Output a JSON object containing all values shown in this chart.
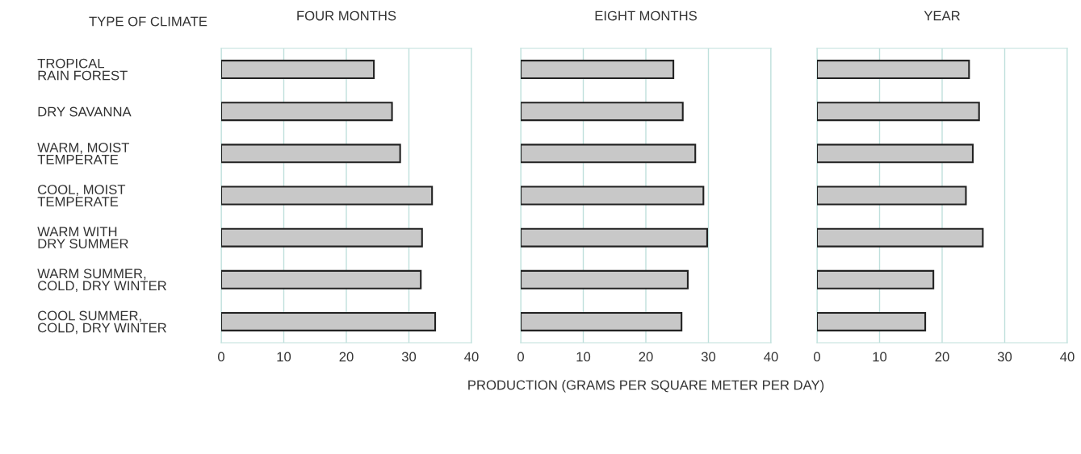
{
  "chart_data": [
    {
      "type": "bar",
      "orientation": "horizontal",
      "title": "FOUR MONTHS",
      "ylabel": "TYPE OF CLIMATE",
      "categories": [
        "TROPICAL\nRAIN FOREST",
        "DRY SAVANNA",
        "WARM, MOIST\nTEMPERATE",
        "COOL, MOIST\nTEMPERATE",
        "WARM WITH\nDRY SUMMER",
        "WARM SUMMER,\nCOLD, DRY WINTER",
        "COOL SUMMER,\nCOLD, DRY WINTER"
      ],
      "values": [
        24.4,
        27.3,
        28.6,
        33.7,
        32.1,
        31.9,
        34.2
      ],
      "color": "#c8c8c8",
      "xlim": [
        0,
        40
      ],
      "xticks": [
        0,
        10,
        20,
        30,
        40
      ],
      "grid": "x"
    },
    {
      "type": "bar",
      "orientation": "horizontal",
      "title": "EIGHT MONTHS",
      "xlabel": "PRODUCTION (GRAMS PER SQUARE METER PER DAY)",
      "values": [
        24.4,
        25.9,
        27.9,
        29.2,
        29.8,
        26.7,
        25.7
      ],
      "color": "#c8c8c8",
      "xlim": [
        0,
        40
      ],
      "xticks": [
        0,
        10,
        20,
        30,
        40
      ],
      "grid": "x",
      "tick_labels": "x"
    },
    {
      "type": "bar",
      "orientation": "horizontal",
      "title": "YEAR",
      "values": [
        24.3,
        25.9,
        24.9,
        23.8,
        26.5,
        18.6,
        17.3
      ],
      "color": "#c8c8c8",
      "xlim": [
        0,
        40
      ],
      "xticks": [
        0,
        10,
        20,
        30,
        40
      ],
      "grid": "x",
      "tick_labels": "x"
    }
  ]
}
